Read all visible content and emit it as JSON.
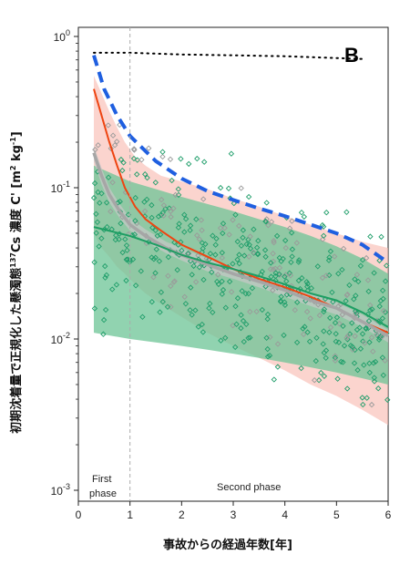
{
  "chart_data": {
    "type": "scatter",
    "panel_label": "B",
    "xlabel": "事故からの経過年数[年]",
    "ylabel": "初期沈着量で正規化した懸濁態 ¹³⁷Cs 濃度 C' [m² kg⁻¹]",
    "ylabel_main": "初期沈着量で正規化した懸濁態",
    "ylabel_sup": "137",
    "ylabel_tail": "Cs 濃度 C' [m",
    "ylabel_sup2": "2",
    "ylabel_mid": " kg",
    "ylabel_sup3": "-1",
    "ylabel_end": "]",
    "xlim": [
      0,
      6
    ],
    "ylim": [
      0.001,
      1
    ],
    "y_scale": "log",
    "x_ticks": [
      "0",
      "1",
      "2",
      "3",
      "4",
      "5",
      "6"
    ],
    "y_ticks": [
      {
        "base": "10",
        "exp": "0",
        "value": 1
      },
      {
        "base": "10",
        "exp": "-1",
        "value": 0.1
      },
      {
        "base": "10",
        "exp": "-2",
        "value": 0.01
      },
      {
        "base": "10",
        "exp": "-3",
        "value": 0.001
      }
    ],
    "phase_boundary_x": 1,
    "annotations": {
      "first_phase_line1": "First",
      "first_phase_line2": "phase",
      "second_phase": "Second phase"
    },
    "series": [
      {
        "style": "dotted",
        "color": "#000000",
        "x": [
          0.3,
          1,
          2,
          3,
          4,
          5,
          5.5
        ],
        "y": [
          0.78,
          0.78,
          0.76,
          0.75,
          0.74,
          0.72,
          0.71
        ]
      },
      {
        "style": "dashed",
        "color": "#1f5fe0",
        "x": [
          0.3,
          0.5,
          0.75,
          1,
          1.5,
          2,
          2.5,
          3,
          3.5,
          4,
          4.5,
          5,
          5.5,
          6
        ],
        "y": [
          0.75,
          0.45,
          0.3,
          0.22,
          0.15,
          0.115,
          0.095,
          0.083,
          0.073,
          0.065,
          0.057,
          0.05,
          0.042,
          0.032
        ]
      },
      {
        "style": "solid",
        "color": "#ee4411",
        "band_color": "#f8b8ae",
        "x": [
          0.3,
          0.45,
          0.6,
          0.75,
          0.9,
          1.1,
          1.3,
          1.6,
          2,
          2.5,
          3,
          3.5,
          4,
          4.5,
          5,
          5.5,
          6
        ],
        "y": [
          0.45,
          0.3,
          0.2,
          0.14,
          0.1,
          0.075,
          0.062,
          0.052,
          0.042,
          0.035,
          0.029,
          0.025,
          0.022,
          0.019,
          0.016,
          0.013,
          0.011
        ],
        "band_low": [
          0.05,
          0.04,
          0.035,
          0.03,
          0.027,
          0.023,
          0.02,
          0.017,
          0.014,
          0.011,
          0.009,
          0.0075,
          0.0062,
          0.005,
          0.0042,
          0.0034,
          0.0027
        ],
        "band_high": [
          0.55,
          0.42,
          0.32,
          0.25,
          0.2,
          0.16,
          0.14,
          0.12,
          0.11,
          0.098,
          0.085,
          0.075,
          0.065,
          0.057,
          0.05,
          0.044,
          0.04
        ]
      },
      {
        "style": "solid",
        "color": "#a6a6a6",
        "band_color": "#c8c8c8",
        "x": [
          0.3,
          0.45,
          0.6,
          0.8,
          1,
          1.3,
          1.7,
          2,
          2.5,
          3,
          3.5,
          4,
          4.5,
          5,
          5.5,
          6
        ],
        "y": [
          0.17,
          0.12,
          0.09,
          0.07,
          0.057,
          0.048,
          0.04,
          0.036,
          0.031,
          0.027,
          0.024,
          0.021,
          0.018,
          0.016,
          0.013,
          0.0105
        ],
        "band_low": [
          0.15,
          0.105,
          0.08,
          0.063,
          0.052,
          0.044,
          0.037,
          0.033,
          0.028,
          0.025,
          0.022,
          0.019,
          0.0165,
          0.0145,
          0.012,
          0.0095
        ],
        "band_high": [
          0.19,
          0.135,
          0.1,
          0.078,
          0.063,
          0.053,
          0.044,
          0.04,
          0.034,
          0.03,
          0.026,
          0.023,
          0.02,
          0.0175,
          0.0145,
          0.0115
        ]
      },
      {
        "style": "solid",
        "color": "#1d9e63",
        "band_color": "#6cc496",
        "x": [
          0.3,
          1,
          1.5,
          2,
          2.5,
          3,
          3.5,
          4,
          4.5,
          5,
          5.5,
          6
        ],
        "y": [
          0.055,
          0.048,
          0.042,
          0.036,
          0.032,
          0.029,
          0.026,
          0.023,
          0.02,
          0.018,
          0.015,
          0.012
        ],
        "band_low": [
          0.011,
          0.01,
          0.0095,
          0.009,
          0.0085,
          0.008,
          0.0075,
          0.007,
          0.0065,
          0.006,
          0.0055,
          0.005
        ],
        "band_high": [
          0.14,
          0.11,
          0.098,
          0.087,
          0.078,
          0.07,
          0.062,
          0.055,
          0.048,
          0.041,
          0.034,
          0.027
        ]
      }
    ],
    "scatter_colors": {
      "green": "#1f9e6a",
      "gray": "#9a9a9a"
    }
  }
}
